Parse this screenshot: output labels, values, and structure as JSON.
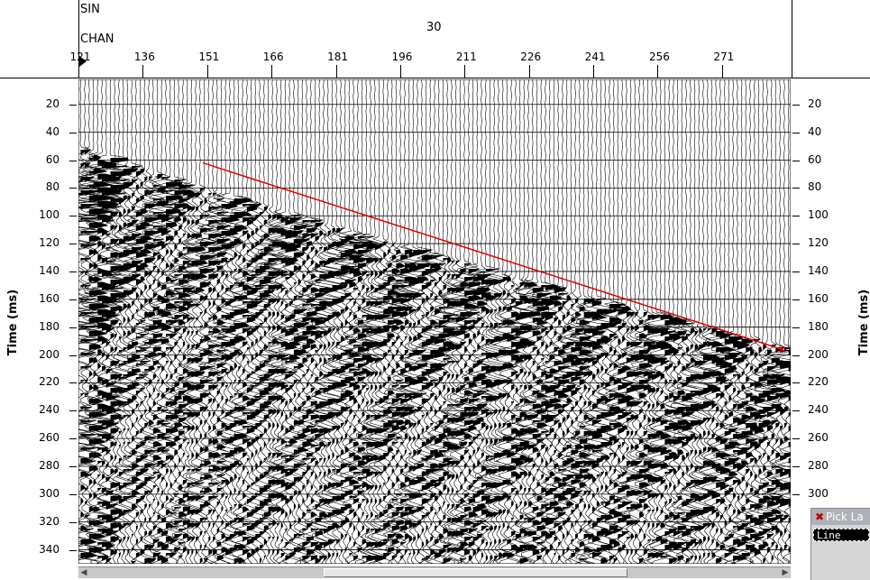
{
  "header": {
    "sin_label": "SIN",
    "chan_label": "CHAN",
    "sin_value": "30"
  },
  "channel_axis": {
    "ticks": [
      "121",
      "136",
      "151",
      "166",
      "181",
      "196",
      "211",
      "226",
      "241",
      "256",
      "271"
    ],
    "values": [
      121,
      136,
      151,
      166,
      181,
      196,
      211,
      226,
      241,
      256,
      271
    ],
    "min": 121,
    "max": 287
  },
  "time_axis": {
    "title_left": "Time (ms)",
    "title_right": "Time (ms)",
    "left_ticks": [
      "20",
      "40",
      "60",
      "80",
      "100",
      "120",
      "140",
      "160",
      "180",
      "200",
      "220",
      "240",
      "260",
      "280",
      "300",
      "320",
      "340"
    ],
    "right_ticks": [
      "20",
      "40",
      "60",
      "80",
      "100",
      "120",
      "140",
      "160",
      "180",
      "200",
      "220",
      "240",
      "260",
      "280",
      "300"
    ],
    "values_left": [
      20,
      40,
      60,
      80,
      100,
      120,
      140,
      160,
      180,
      200,
      220,
      240,
      260,
      280,
      300,
      320,
      340
    ],
    "values_right": [
      20,
      40,
      60,
      80,
      100,
      120,
      140,
      160,
      180,
      200,
      220,
      240,
      260,
      280,
      300
    ],
    "min_ms": 2,
    "max_ms": 350
  },
  "pick_line": {
    "color": "#e00000",
    "start": {
      "channel": 150,
      "time_ms": 62
    },
    "end": {
      "channel": 285,
      "time_ms": 196
    }
  },
  "seismic": {
    "trace_color": "#000000",
    "first_break_ms_at_start": 55,
    "first_break_ms_at_end": 200
  },
  "scrollbar": {
    "position": 0.34,
    "extent": 0.44
  },
  "pick_panel": {
    "title": "Pick La",
    "field_value": "Line"
  }
}
